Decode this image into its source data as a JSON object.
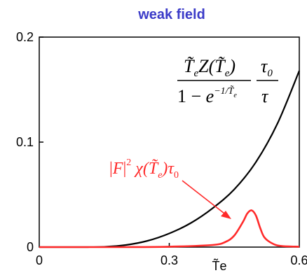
{
  "title": "weak field",
  "colors": {
    "title": "#3b3bc8",
    "black_curve": "#000000",
    "red_curve": "#ff2a2a"
  },
  "chart_data": {
    "type": "line",
    "title": "weak field",
    "xlabel": "T̃e",
    "ylabel": "",
    "xlim": [
      0,
      0.6
    ],
    "ylim": [
      0,
      0.2
    ],
    "x_ticks": [
      "0",
      "0.3",
      "0.6"
    ],
    "y_ticks": [
      "0",
      "0.1",
      "0.2"
    ],
    "grid": false,
    "series": [
      {
        "color": "#000000",
        "x": [
          0.0,
          0.05,
          0.1,
          0.15,
          0.2,
          0.25,
          0.3,
          0.35,
          0.4,
          0.45,
          0.5,
          0.55,
          0.6
        ],
        "y": [
          0.0,
          0.0,
          0.0,
          0.0003,
          0.002,
          0.006,
          0.013,
          0.023,
          0.037,
          0.055,
          0.081,
          0.118,
          0.168
        ]
      },
      {
        "color": "#ff2a2a",
        "x": [
          0.0,
          0.1,
          0.2,
          0.3,
          0.4,
          0.43,
          0.45,
          0.47,
          0.48,
          0.49,
          0.5,
          0.51,
          0.52,
          0.54,
          0.56,
          0.6
        ],
        "y": [
          0.0,
          0.0,
          0.0,
          0.0004,
          0.002,
          0.005,
          0.011,
          0.024,
          0.032,
          0.035,
          0.03,
          0.018,
          0.009,
          0.003,
          0.001,
          0.0004
        ]
      }
    ],
    "annotations": {
      "black_formula": "T̃eZ(T̃e)/(1−e^(−1/T̃e)) · τ0/τ",
      "red_formula": "|F|² χ(T̃e)τ0"
    }
  }
}
